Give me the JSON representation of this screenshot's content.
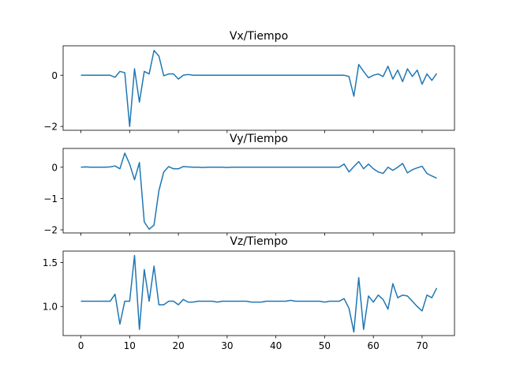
{
  "chart_data": [
    {
      "type": "line",
      "title": "Vx/Tiempo",
      "xlabel": "",
      "ylabel": "",
      "xlim": [
        -3.65,
        76.65
      ],
      "ylim": [
        -2.15,
        1.15
      ],
      "yticks": [
        -2,
        0
      ],
      "xticks": [
        0,
        10,
        20,
        30,
        40,
        50,
        60,
        70
      ],
      "show_xtick_labels": false,
      "grid": false,
      "color": "#1f77b4",
      "series": [
        {
          "x": [
            0,
            1,
            2,
            3,
            4,
            5,
            6,
            7,
            8,
            9,
            10,
            11,
            12,
            13,
            14,
            15,
            16,
            17,
            18,
            19,
            20,
            21,
            22,
            23,
            24,
            25,
            26,
            27,
            28,
            29,
            30,
            31,
            32,
            33,
            34,
            35,
            36,
            37,
            38,
            39,
            40,
            41,
            42,
            43,
            44,
            45,
            46,
            47,
            48,
            49,
            50,
            51,
            52,
            53,
            54,
            55,
            56,
            57,
            58,
            59,
            60,
            61,
            62,
            63,
            64,
            65,
            66,
            67,
            68,
            69,
            70,
            71,
            72,
            73
          ],
          "values": [
            0,
            0,
            0,
            0,
            0,
            0,
            0,
            -0.08,
            0.15,
            0.1,
            -2,
            0.25,
            -1.05,
            0.15,
            0.05,
            0.97,
            0.75,
            -0.02,
            0.05,
            0.05,
            -0.15,
            0,
            0.03,
            0,
            0,
            0,
            0,
            0,
            0,
            0,
            0,
            0,
            0,
            0,
            0,
            0,
            0,
            0,
            0,
            0,
            0,
            0,
            0,
            0,
            0,
            0,
            0,
            0,
            0,
            0,
            0,
            0,
            0,
            0,
            0,
            -0.05,
            -0.82,
            0.42,
            0.15,
            -0.1,
            0,
            0.05,
            -0.05,
            0.35,
            -0.15,
            0.2,
            -0.25,
            0.25,
            -0.05,
            0.2,
            -0.35,
            0.05,
            -0.2,
            0.07
          ]
        }
      ]
    },
    {
      "type": "line",
      "title": "Vy/Tiempo",
      "xlabel": "",
      "ylabel": "",
      "xlim": [
        -3.65,
        76.65
      ],
      "ylim": [
        -2.1,
        0.6
      ],
      "yticks": [
        -2,
        -1,
        0
      ],
      "xticks": [
        0,
        10,
        20,
        30,
        40,
        50,
        60,
        70
      ],
      "show_xtick_labels": false,
      "grid": false,
      "color": "#1f77b4",
      "series": [
        {
          "x": [
            0,
            1,
            2,
            3,
            4,
            5,
            6,
            7,
            8,
            9,
            10,
            11,
            12,
            13,
            14,
            15,
            16,
            17,
            18,
            19,
            20,
            21,
            22,
            23,
            24,
            25,
            26,
            27,
            28,
            29,
            30,
            31,
            32,
            33,
            34,
            35,
            36,
            37,
            38,
            39,
            40,
            41,
            42,
            43,
            44,
            45,
            46,
            47,
            48,
            49,
            50,
            51,
            52,
            53,
            54,
            55,
            56,
            57,
            58,
            59,
            60,
            61,
            62,
            63,
            64,
            65,
            66,
            67,
            68,
            69,
            70,
            71,
            72,
            73
          ],
          "values": [
            0,
            0.01,
            0,
            0,
            0,
            0,
            0.01,
            0.04,
            -0.05,
            0.45,
            0.1,
            -0.4,
            0.15,
            -1.75,
            -1.98,
            -1.85,
            -0.75,
            -0.15,
            0.02,
            -0.05,
            -0.05,
            0.02,
            0.01,
            0,
            0,
            -0.01,
            0,
            0,
            0,
            0,
            -0.01,
            0,
            0,
            0,
            0,
            0,
            0,
            0,
            0,
            0,
            0,
            0,
            0,
            0,
            0,
            0,
            0,
            0,
            0,
            0,
            0,
            0,
            0,
            0,
            0.1,
            -0.15,
            0.02,
            0.18,
            -0.05,
            0.1,
            -0.05,
            -0.15,
            -0.2,
            0,
            -0.1,
            0,
            0.12,
            -0.18,
            -0.08,
            -0.02,
            0.03,
            -0.2,
            -0.28,
            -0.35
          ]
        }
      ]
    },
    {
      "type": "line",
      "title": "Vz/Tiempo",
      "xlabel": "",
      "ylabel": "",
      "xlim": [
        -3.65,
        76.65
      ],
      "ylim": [
        0.67,
        1.63
      ],
      "yticks": [
        1.0,
        1.5
      ],
      "ytick_labels": [
        "1.0",
        "1.5"
      ],
      "xticks": [
        0,
        10,
        20,
        30,
        40,
        50,
        60,
        70
      ],
      "xtick_labels": [
        "0",
        "10",
        "20",
        "30",
        "40",
        "50",
        "60",
        "70"
      ],
      "show_xtick_labels": true,
      "grid": false,
      "color": "#1f77b4",
      "series": [
        {
          "x": [
            0,
            1,
            2,
            3,
            4,
            5,
            6,
            7,
            8,
            9,
            10,
            11,
            12,
            13,
            14,
            15,
            16,
            17,
            18,
            19,
            20,
            21,
            22,
            23,
            24,
            25,
            26,
            27,
            28,
            29,
            30,
            31,
            32,
            33,
            34,
            35,
            36,
            37,
            38,
            39,
            40,
            41,
            42,
            43,
            44,
            45,
            46,
            47,
            48,
            49,
            50,
            51,
            52,
            53,
            54,
            55,
            56,
            57,
            58,
            59,
            60,
            61,
            62,
            63,
            64,
            65,
            66,
            67,
            68,
            69,
            70,
            71,
            72,
            73
          ],
          "values": [
            1.06,
            1.06,
            1.06,
            1.06,
            1.06,
            1.06,
            1.06,
            1.14,
            0.8,
            1.06,
            1.06,
            1.58,
            0.74,
            1.42,
            1.06,
            1.46,
            1.02,
            1.02,
            1.06,
            1.06,
            1.02,
            1.08,
            1.05,
            1.05,
            1.06,
            1.06,
            1.06,
            1.06,
            1.05,
            1.06,
            1.06,
            1.06,
            1.06,
            1.06,
            1.06,
            1.05,
            1.05,
            1.05,
            1.06,
            1.06,
            1.06,
            1.06,
            1.06,
            1.07,
            1.06,
            1.06,
            1.06,
            1.06,
            1.06,
            1.06,
            1.05,
            1.06,
            1.06,
            1.06,
            1.09,
            0.98,
            0.71,
            1.33,
            0.74,
            1.12,
            1.05,
            1.13,
            1.08,
            0.97,
            1.26,
            1.1,
            1.13,
            1.12,
            1.06,
            1.0,
            0.95,
            1.13,
            1.1,
            1.21
          ]
        }
      ]
    }
  ]
}
